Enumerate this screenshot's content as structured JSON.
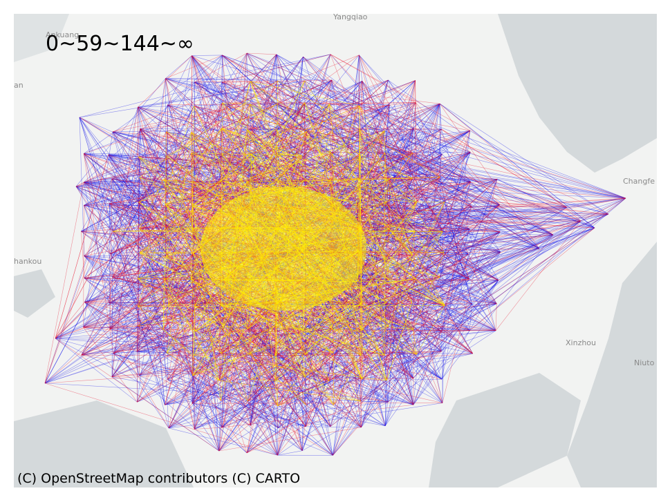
{
  "legend": {
    "text": "0~59~144~∞",
    "thresholds": [
      0,
      59,
      144,
      "∞"
    ],
    "colors": [
      "#1010e8",
      "#e8102a",
      "#ffee00"
    ]
  },
  "attribution": "(C) OpenStreetMap contributors (C) CARTO",
  "basemap": {
    "land_color": "#f2f3f2",
    "water_color": "#d4d9db",
    "place_labels": [
      "Yangqiao",
      "Ankuang",
      "an",
      "Changfe",
      "hankou",
      "Xinzhou",
      "Niuto"
    ]
  }
}
